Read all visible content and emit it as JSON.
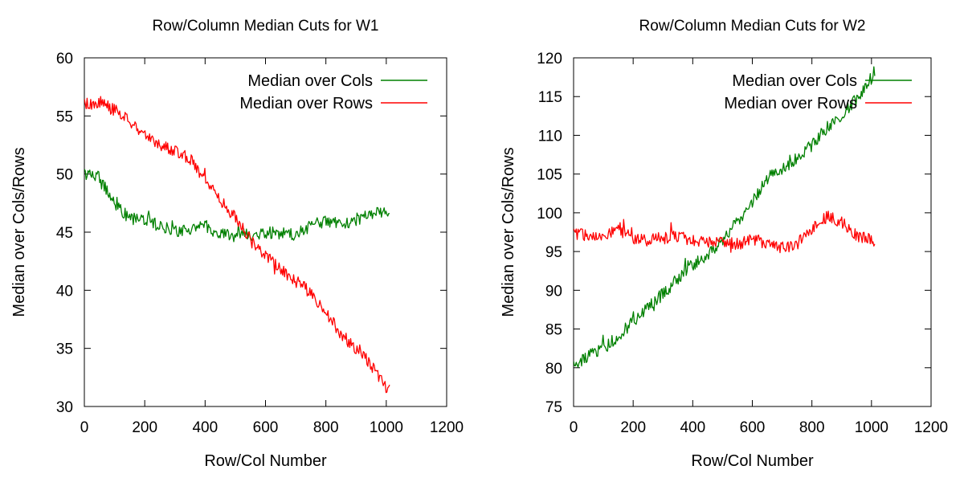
{
  "chart_data": [
    {
      "type": "line",
      "title": "Row/Column Median Cuts for W1",
      "xlabel": "Row/Col Number",
      "ylabel": "Median over Cols/Rows",
      "xlim": [
        0,
        1200
      ],
      "ylim": [
        30,
        60
      ],
      "xticks": [
        0,
        200,
        400,
        600,
        800,
        1000,
        1200
      ],
      "yticks": [
        30,
        35,
        40,
        45,
        50,
        55,
        60
      ],
      "grid": false,
      "legend_position": "top-right",
      "series": [
        {
          "name": "Median over Cols",
          "color": "#008000",
          "x": [
            0,
            50,
            100,
            150,
            200,
            250,
            300,
            350,
            400,
            450,
            500,
            550,
            600,
            650,
            700,
            750,
            800,
            850,
            900,
            950,
            1000,
            1012
          ],
          "y": [
            50.1,
            49.7,
            47.5,
            46.1,
            46.1,
            45.5,
            45.1,
            45.3,
            45.6,
            44.8,
            44.7,
            44.8,
            45.0,
            44.9,
            44.8,
            45.5,
            46.0,
            45.6,
            46.1,
            46.5,
            46.7,
            46.8
          ]
        },
        {
          "name": "Median over Rows",
          "color": "#ff0000",
          "x": [
            0,
            50,
            100,
            150,
            200,
            250,
            300,
            350,
            400,
            450,
            500,
            550,
            600,
            650,
            700,
            750,
            800,
            850,
            900,
            950,
            1000,
            1012
          ],
          "y": [
            56.0,
            56.2,
            55.5,
            54.5,
            53.5,
            52.5,
            52.0,
            51.3,
            49.6,
            47.7,
            46.3,
            44.3,
            43.0,
            41.8,
            40.8,
            39.8,
            38.1,
            36.2,
            35.0,
            33.6,
            31.7,
            31.5
          ]
        }
      ]
    },
    {
      "type": "line",
      "title": "Row/Column Median Cuts for W2",
      "xlabel": "Row/Col Number",
      "ylabel": "Median over Cols/Rows",
      "xlim": [
        0,
        1200
      ],
      "ylim": [
        75,
        120
      ],
      "xticks": [
        0,
        200,
        400,
        600,
        800,
        1000,
        1200
      ],
      "yticks": [
        75,
        80,
        85,
        90,
        95,
        100,
        105,
        110,
        115,
        120
      ],
      "grid": false,
      "legend_position": "top-right",
      "series": [
        {
          "name": "Median over Cols",
          "color": "#008000",
          "x": [
            0,
            50,
            100,
            150,
            200,
            250,
            300,
            350,
            400,
            450,
            500,
            550,
            600,
            650,
            700,
            750,
            800,
            850,
            900,
            950,
            1000,
            1012
          ],
          "y": [
            80.2,
            81.5,
            82.5,
            84.0,
            86.0,
            87.8,
            89.5,
            91.5,
            93.3,
            94.6,
            96.5,
            98.8,
            101.5,
            104.5,
            105.8,
            107.0,
            108.7,
            111.0,
            112.7,
            114.6,
            117.4,
            118.5
          ]
        },
        {
          "name": "Median over Rows",
          "color": "#ff0000",
          "x": [
            0,
            50,
            100,
            150,
            200,
            250,
            300,
            350,
            400,
            450,
            500,
            550,
            600,
            650,
            700,
            750,
            800,
            850,
            900,
            950,
            1000,
            1012
          ],
          "y": [
            97.3,
            97.1,
            97.3,
            97.7,
            96.8,
            96.5,
            96.7,
            96.9,
            96.5,
            96.3,
            96.0,
            96.0,
            96.5,
            96.2,
            95.5,
            96.0,
            98.0,
            99.5,
            98.8,
            97.0,
            96.5,
            96.5
          ]
        }
      ]
    }
  ]
}
